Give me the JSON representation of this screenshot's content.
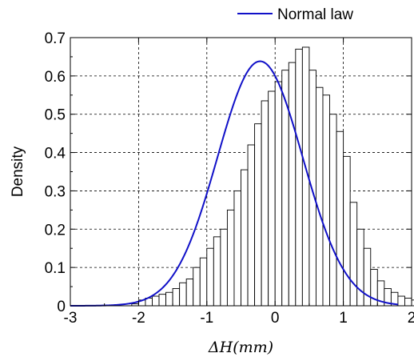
{
  "chart_data": {
    "type": "bar",
    "xlabel": "ΔH(mm)",
    "ylabel": "Density",
    "xlim": [
      -3,
      2
    ],
    "ylim": [
      0,
      0.7
    ],
    "x_ticks": [
      -3,
      -2,
      -1,
      0,
      1,
      2
    ],
    "x_tick_labels": [
      "-3",
      "-2",
      "-1",
      "0",
      "1",
      "2"
    ],
    "y_ticks": [
      0,
      0.1,
      0.2,
      0.3,
      0.4,
      0.5,
      0.6,
      0.7
    ],
    "y_tick_labels": [
      "0",
      "0.1",
      "0.2",
      "0.3",
      "0.4",
      "0.5",
      "0.6",
      "0.7"
    ],
    "grid": true,
    "legend_position": "top-right",
    "histogram": {
      "bin_start": -2.1,
      "bin_width": 0.1,
      "densities": [
        0.005,
        0.015,
        0.02,
        0.025,
        0.03,
        0.035,
        0.045,
        0.06,
        0.07,
        0.1,
        0.125,
        0.15,
        0.18,
        0.2,
        0.25,
        0.3,
        0.355,
        0.42,
        0.475,
        0.535,
        0.56,
        0.585,
        0.615,
        0.635,
        0.67,
        0.675,
        0.615,
        0.57,
        0.55,
        0.5,
        0.455,
        0.39,
        0.27,
        0.2,
        0.15,
        0.095,
        0.065,
        0.045,
        0.035,
        0.025,
        0.02,
        0.015,
        0.01,
        0.005
      ]
    },
    "series": [
      {
        "name": "Normal law",
        "distribution": "normal",
        "mean": -0.22,
        "std": 0.625
      }
    ],
    "colors": {
      "curve": "#1010c8",
      "bar_fill": "#ffffff",
      "bar_edge": "#000000",
      "grid": "#000000"
    }
  }
}
